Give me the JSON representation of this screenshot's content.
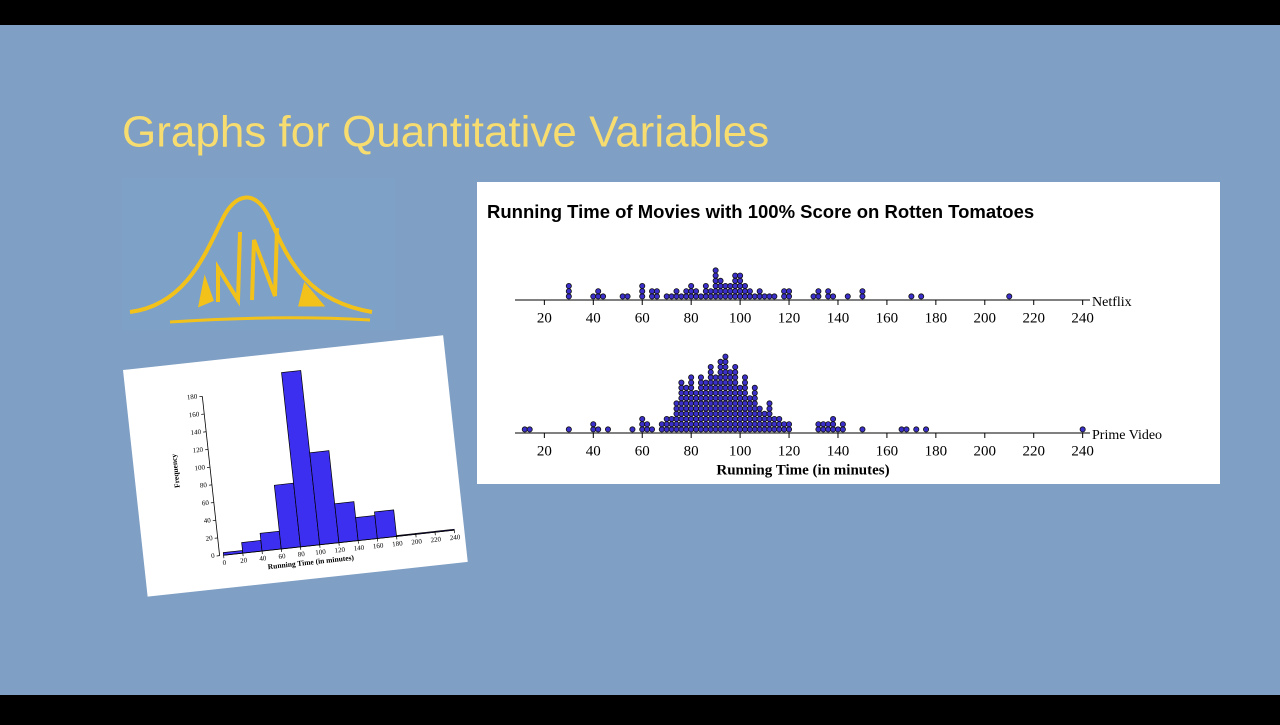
{
  "slide_title": "Graphs for Quantitative Variables",
  "chart_data": [
    {
      "type": "histogram",
      "bins": [
        0,
        20,
        40,
        60,
        80,
        100,
        120,
        140,
        160,
        180,
        200,
        220,
        240
      ],
      "values": [
        3,
        12,
        20,
        72,
        197,
        104,
        44,
        26,
        30,
        1,
        1,
        1
      ],
      "color": "#3d2ff0",
      "xlabel": "Running Time (in minutes)",
      "ylabel": "Frequency",
      "xlim": [
        0,
        240
      ],
      "xticks": [
        0,
        20,
        40,
        60,
        80,
        100,
        120,
        140,
        160,
        180,
        200,
        220,
        240
      ],
      "ylim": [
        0,
        200
      ],
      "yticks": [
        0,
        20,
        40,
        60,
        80,
        100,
        120,
        140,
        160,
        180
      ]
    },
    {
      "type": "dot",
      "title": "Running Time of Movies with 100% Score on Rotten Tomatoes",
      "xlabel": "Running Time (in minutes)",
      "color": "#3b2fc9",
      "xlim": [
        8,
        243
      ],
      "xticks": [
        20,
        40,
        60,
        80,
        100,
        120,
        140,
        160,
        180,
        200,
        220,
        240
      ],
      "series": [
        {
          "name": "Netflix",
          "x": [
            30,
            40,
            42,
            44,
            52,
            54,
            60,
            64,
            66,
            70,
            72,
            74,
            76,
            78,
            80,
            82,
            84,
            86,
            88,
            90,
            92,
            94,
            96,
            98,
            100,
            102,
            104,
            106,
            108,
            110,
            112,
            114,
            118,
            120,
            130,
            132,
            136,
            138,
            144,
            150,
            170,
            174,
            210
          ],
          "counts": [
            3,
            1,
            2,
            1,
            1,
            1,
            3,
            2,
            2,
            1,
            1,
            2,
            1,
            2,
            3,
            2,
            1,
            3,
            2,
            6,
            4,
            3,
            3,
            5,
            5,
            3,
            2,
            1,
            2,
            1,
            1,
            1,
            2,
            2,
            1,
            2,
            2,
            1,
            1,
            2,
            1,
            1,
            1
          ]
        },
        {
          "name": "Prime Video",
          "x": [
            12,
            14,
            30,
            40,
            42,
            46,
            56,
            60,
            62,
            64,
            68,
            70,
            72,
            74,
            76,
            78,
            80,
            82,
            84,
            86,
            88,
            90,
            92,
            94,
            96,
            98,
            100,
            102,
            104,
            106,
            108,
            110,
            112,
            114,
            116,
            118,
            120,
            132,
            134,
            136,
            138,
            140,
            142,
            150,
            166,
            168,
            172,
            176,
            240
          ],
          "counts": [
            1,
            1,
            1,
            2,
            1,
            1,
            1,
            3,
            2,
            1,
            2,
            3,
            3,
            6,
            10,
            9,
            11,
            8,
            11,
            10,
            13,
            11,
            14,
            15,
            12,
            13,
            9,
            11,
            7,
            9,
            5,
            4,
            6,
            3,
            3,
            2,
            2,
            2,
            2,
            2,
            3,
            1,
            2,
            1,
            1,
            1,
            1,
            1,
            1
          ]
        }
      ]
    }
  ]
}
